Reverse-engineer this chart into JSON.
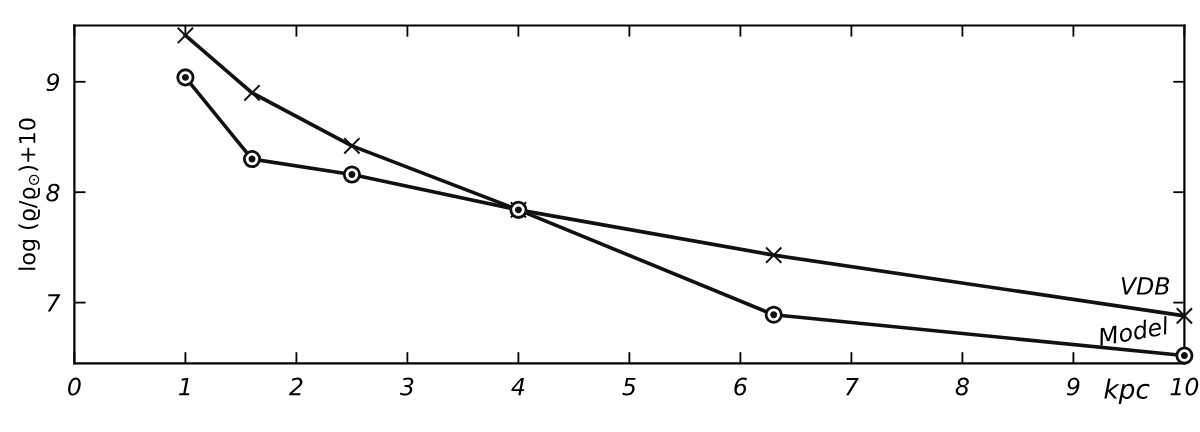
{
  "chart_data": {
    "type": "line",
    "xlabel": "kpc",
    "ylabel": "log (ϱ/ϱ$_{⊙}$)+10",
    "xlim": [
      0,
      10
    ],
    "xticks": [
      0,
      1,
      2,
      3,
      4,
      5,
      6,
      7,
      8,
      9,
      10
    ],
    "ylim": [
      6.45,
      9.51
    ],
    "yticks": [
      7,
      8,
      9
    ],
    "grid": false,
    "legend": false,
    "line_style": "solid",
    "series": [
      {
        "name": "VDB",
        "color": "#111111",
        "marker": "cross",
        "x": [
          1,
          1.6,
          2.5,
          4,
          6.3,
          10
        ],
        "values": [
          9.42,
          8.9,
          8.42,
          7.84,
          7.43,
          6.88
        ]
      },
      {
        "name": "Model",
        "color": "#111111",
        "marker": "circle",
        "x": [
          1,
          1.6,
          2.5,
          4,
          6.3,
          10
        ],
        "values": [
          9.04,
          8.3,
          8.16,
          7.84,
          6.89,
          6.52
        ]
      }
    ]
  }
}
